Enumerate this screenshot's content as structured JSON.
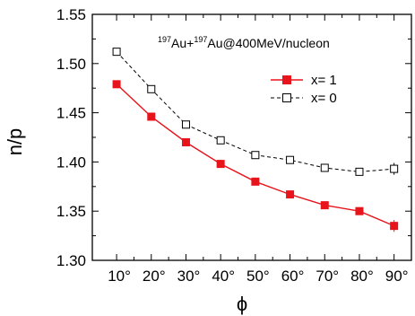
{
  "chart_data": {
    "type": "line",
    "xlabel": "ϕ",
    "ylabel": "n/p",
    "annotation": {
      "mass1": "197",
      "elem1": "Au+",
      "mass2": "197",
      "elem2": "Au@400MeV/nucleon"
    },
    "x_tick_labels": [
      "10°",
      "20°",
      "30°",
      "40°",
      "50°",
      "60°",
      "70°",
      "80°",
      "90°"
    ],
    "x": [
      10,
      20,
      30,
      40,
      50,
      60,
      70,
      80,
      90
    ],
    "xlim": [
      3,
      95
    ],
    "ylim": [
      1.3,
      1.55
    ],
    "y_ticks": [
      1.3,
      1.35,
      1.4,
      1.45,
      1.5,
      1.55
    ],
    "y_tick_labels": [
      "1.30",
      "1.35",
      "1.40",
      "1.45",
      "1.50",
      "1.55"
    ],
    "legend_position": "upper-right",
    "series": [
      {
        "name": "x= 1",
        "color": "#e8141b",
        "marker": "filled-square",
        "line_style": "solid",
        "values": [
          1.479,
          1.446,
          1.42,
          1.398,
          1.38,
          1.367,
          1.356,
          1.35,
          1.335
        ],
        "errors": [
          0,
          0,
          0,
          0,
          0,
          0,
          0,
          0,
          0.006
        ]
      },
      {
        "name": "x= 0",
        "color": "#000000",
        "marker": "open-square",
        "line_style": "dashed",
        "values": [
          1.512,
          1.474,
          1.438,
          1.422,
          1.407,
          1.402,
          1.394,
          1.39,
          1.393
        ],
        "errors": [
          0,
          0,
          0,
          0,
          0,
          0,
          0,
          0,
          0.006
        ]
      }
    ]
  }
}
